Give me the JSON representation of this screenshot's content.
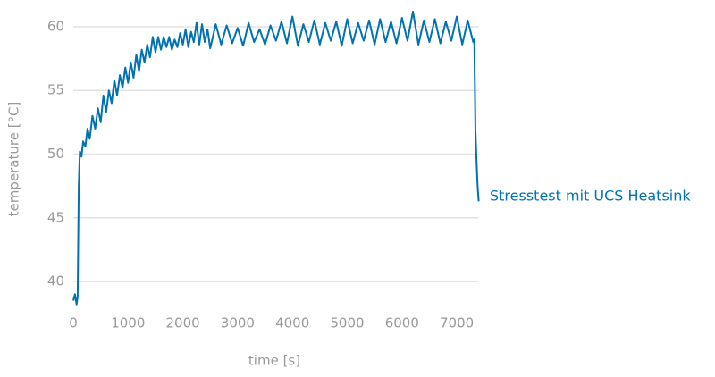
{
  "chart_data": {
    "type": "line",
    "x_label": "time [s]",
    "y_label": "temperature [°C]",
    "x": [
      0,
      30,
      60,
      80,
      100,
      120,
      150,
      180,
      220,
      260,
      300,
      350,
      400,
      450,
      500,
      550,
      600,
      650,
      700,
      750,
      800,
      850,
      900,
      950,
      1000,
      1050,
      1100,
      1150,
      1200,
      1250,
      1300,
      1350,
      1400,
      1450,
      1500,
      1550,
      1600,
      1650,
      1700,
      1750,
      1800,
      1850,
      1900,
      1950,
      2000,
      2050,
      2100,
      2150,
      2200,
      2250,
      2300,
      2350,
      2400,
      2450,
      2500,
      2600,
      2700,
      2800,
      2900,
      3000,
      3100,
      3200,
      3300,
      3400,
      3500,
      3600,
      3700,
      3800,
      3900,
      4000,
      4100,
      4200,
      4300,
      4400,
      4500,
      4600,
      4700,
      4800,
      4900,
      5000,
      5100,
      5200,
      5300,
      5400,
      5500,
      5600,
      5700,
      5800,
      5900,
      6000,
      6100,
      6200,
      6300,
      6400,
      6500,
      6600,
      6700,
      6800,
      6900,
      7000,
      7100,
      7200,
      7300,
      7320,
      7340,
      7360,
      7380,
      7400
    ],
    "series": [
      {
        "name": "Stresstest mit UCS Heatsink",
        "color": "#0072b2",
        "values": [
          38.5,
          39,
          38.2,
          38.8,
          47.5,
          50.2,
          49.8,
          51,
          50.6,
          52,
          51.2,
          53,
          52,
          53.6,
          52.5,
          54.6,
          53.3,
          55,
          54,
          55.8,
          54.6,
          56.2,
          55.2,
          56.8,
          55.6,
          57.2,
          56,
          57.8,
          56.5,
          58.2,
          57.2,
          58.6,
          57.6,
          59.2,
          58,
          59.2,
          58.2,
          59.2,
          58.4,
          59.2,
          58.2,
          59,
          58.4,
          59.5,
          58.6,
          59.8,
          58.4,
          59.6,
          58.8,
          60.3,
          58.6,
          60.2,
          58.8,
          59.8,
          58.3,
          60.2,
          58.6,
          60.1,
          58.7,
          59.9,
          58.5,
          60.3,
          58.8,
          59.8,
          58.6,
          60.1,
          58.9,
          60.4,
          58.7,
          60.8,
          58.5,
          60.2,
          58.8,
          60.5,
          58.6,
          60.3,
          58.9,
          60.4,
          58.5,
          60.6,
          58.7,
          60.3,
          58.9,
          60.5,
          58.6,
          60.6,
          58.8,
          60.4,
          58.7,
          60.7,
          58.9,
          61.2,
          58.6,
          60.5,
          58.8,
          60.6,
          58.7,
          60.4,
          58.9,
          60.8,
          58.6,
          60.5,
          58.8,
          59,
          52,
          49.5,
          47.5,
          46.3
        ]
      }
    ],
    "xlim": [
      0,
      7400
    ],
    "ylim": [
      37.9,
      61.4
    ],
    "xticks": [
      0,
      1000,
      2000,
      3000,
      4000,
      5000,
      6000,
      7000
    ],
    "yticks": [
      40,
      45,
      50,
      55,
      60
    ],
    "grid": true
  }
}
